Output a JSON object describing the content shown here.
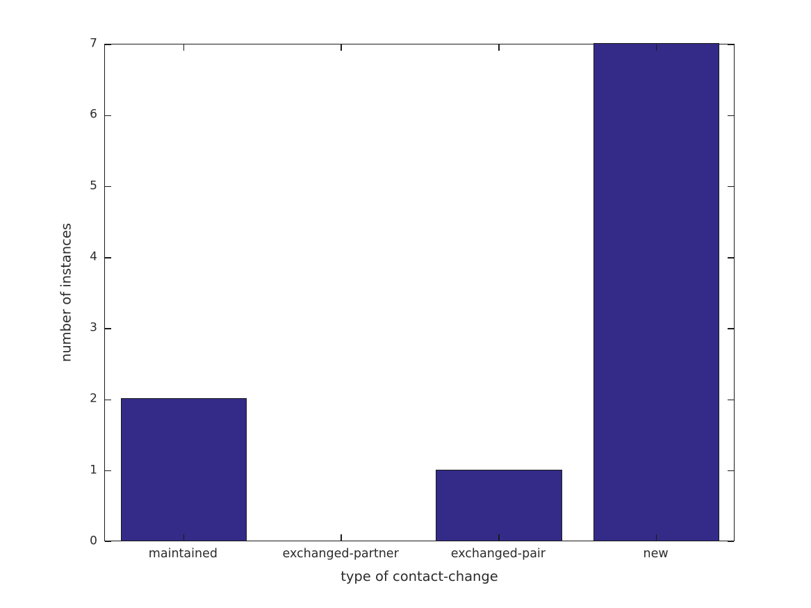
{
  "chart_data": {
    "type": "bar",
    "categories": [
      "maintained",
      "exchanged-partner",
      "exchanged-pair",
      "new"
    ],
    "values": [
      2,
      0,
      1,
      7
    ],
    "title": "",
    "xlabel": "type of contact-change",
    "ylabel": "number of instances",
    "ylim": [
      0,
      7
    ],
    "yticks": [
      0,
      1,
      2,
      3,
      4,
      5,
      6,
      7
    ],
    "bar_color": "#332b87",
    "bar_edge_color": "#1a1a1a",
    "axis_color": "#1a1a1a",
    "text_color": "#2b2b2b",
    "background_color": "#ffffff",
    "bar_width_fraction": 0.8,
    "grid": false,
    "legend": null,
    "tick_style": "inward-all-sides"
  }
}
